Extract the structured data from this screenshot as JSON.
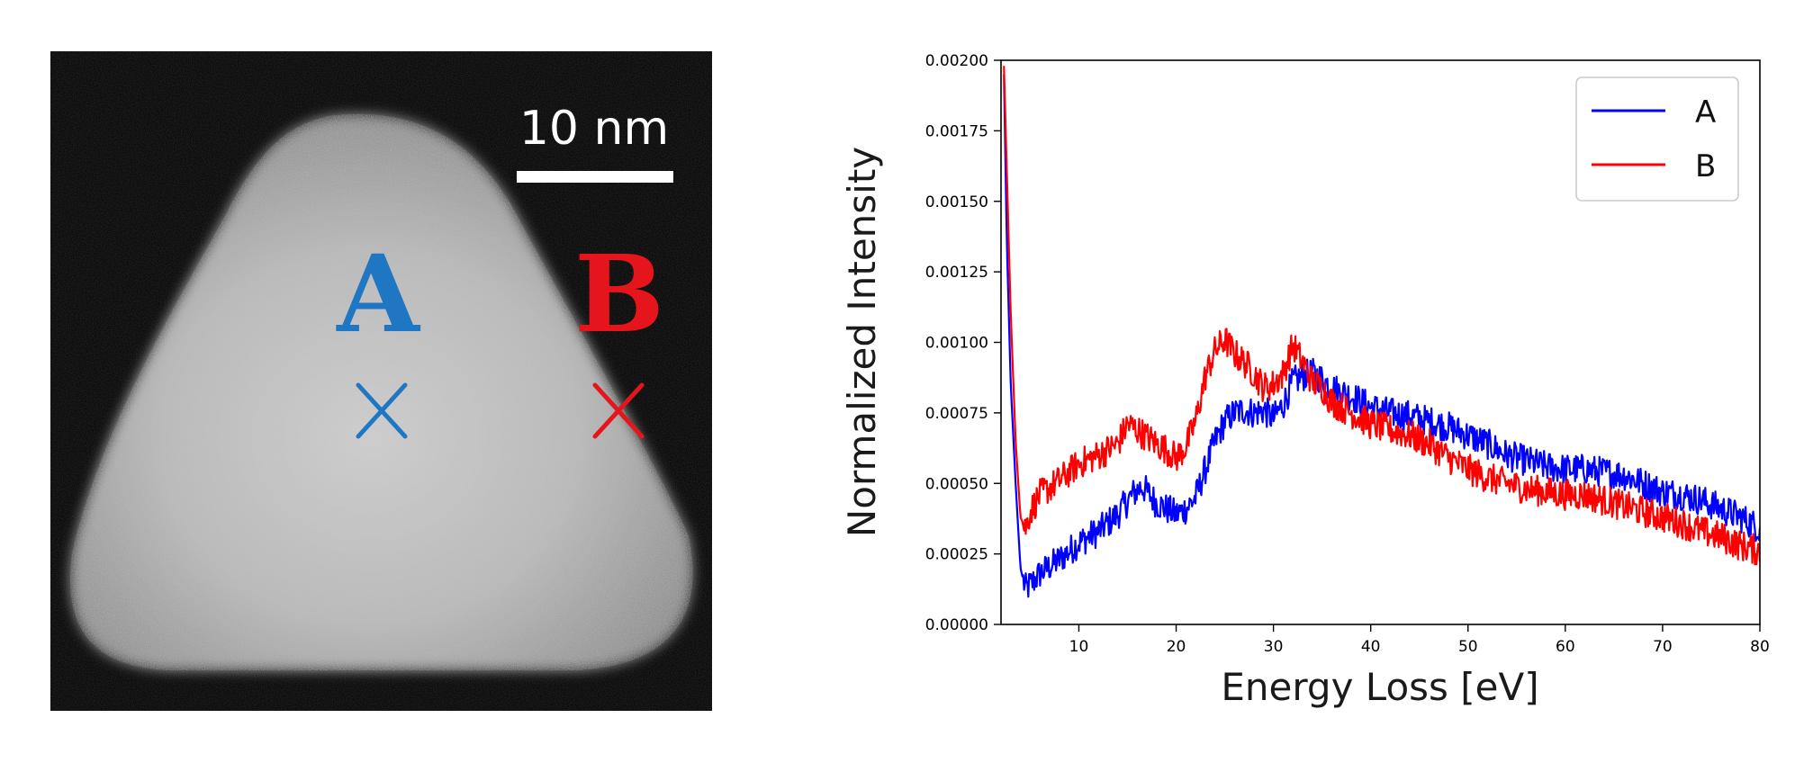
{
  "micrograph": {
    "scale_bar_label": "10 nm",
    "markers": [
      {
        "letter": "A",
        "color": "#1f77c4"
      },
      {
        "letter": "B",
        "color": "#e6141b"
      }
    ],
    "background": "#080808"
  },
  "chart_data": {
    "type": "line",
    "title": "",
    "xlabel": "Energy Loss [eV]",
    "ylabel": "Normalized Intensity",
    "xlim": [
      2,
      80
    ],
    "ylim": [
      0,
      0.002
    ],
    "xticks": [
      10,
      20,
      30,
      40,
      50,
      60,
      70,
      80
    ],
    "yticks": [
      "0.00000",
      "0.00025",
      "0.00050",
      "0.00075",
      "0.00100",
      "0.00125",
      "0.00150",
      "0.00175",
      "0.00200"
    ],
    "grid": false,
    "legend_position": "top-right",
    "series": [
      {
        "name": "A",
        "color": "#0000ff",
        "points": [
          [
            2.3,
            0.00195
          ],
          [
            2.6,
            0.00135
          ],
          [
            3.0,
            0.00085
          ],
          [
            3.5,
            0.0005
          ],
          [
            4.0,
            0.0002
          ],
          [
            4.5,
            0.000125
          ],
          [
            5,
            0.00014
          ],
          [
            6,
            0.00018
          ],
          [
            8,
            0.00023
          ],
          [
            10,
            0.00029
          ],
          [
            12,
            0.00033
          ],
          [
            14,
            0.00039
          ],
          [
            15.5,
            0.00046
          ],
          [
            16.5,
            0.00049
          ],
          [
            18,
            0.00043
          ],
          [
            19,
            0.00041
          ],
          [
            20,
            0.00039
          ],
          [
            21,
            0.00041
          ],
          [
            22,
            0.00045
          ],
          [
            23,
            0.00055
          ],
          [
            24,
            0.00065
          ],
          [
            25,
            0.00072
          ],
          [
            26,
            0.00075
          ],
          [
            27,
            0.00076
          ],
          [
            28,
            0.00075
          ],
          [
            29,
            0.00076
          ],
          [
            30,
            0.00073
          ],
          [
            31,
            0.00078
          ],
          [
            32,
            0.00086
          ],
          [
            33,
            0.00088
          ],
          [
            34,
            0.00089
          ],
          [
            35,
            0.00087
          ],
          [
            36,
            0.00084
          ],
          [
            38,
            0.00081
          ],
          [
            40,
            0.00077
          ],
          [
            42,
            0.00075
          ],
          [
            44,
            0.00074
          ],
          [
            46,
            0.00072
          ],
          [
            48,
            0.0007
          ],
          [
            50,
            0.00067
          ],
          [
            52,
            0.00064
          ],
          [
            54,
            0.0006
          ],
          [
            56,
            0.00058
          ],
          [
            58,
            0.00056
          ],
          [
            60,
            0.00055
          ],
          [
            62,
            0.00055
          ],
          [
            64,
            0.00054
          ],
          [
            66,
            0.00053
          ],
          [
            68,
            0.0005
          ],
          [
            70,
            0.00047
          ],
          [
            72,
            0.00046
          ],
          [
            74,
            0.00044
          ],
          [
            76,
            0.00041
          ],
          [
            78,
            0.00038
          ],
          [
            80,
            0.00034
          ]
        ]
      },
      {
        "name": "B",
        "color": "#ff0000",
        "points": [
          [
            2.3,
            0.00198
          ],
          [
            2.6,
            0.0016
          ],
          [
            3.0,
            0.0011
          ],
          [
            3.5,
            0.00065
          ],
          [
            4.0,
            0.00038
          ],
          [
            4.5,
            0.00034
          ],
          [
            5,
            0.0004
          ],
          [
            6,
            0.00046
          ],
          [
            8,
            0.00051
          ],
          [
            10,
            0.00057
          ],
          [
            12,
            0.0006
          ],
          [
            14,
            0.00064
          ],
          [
            15,
            0.00071
          ],
          [
            16,
            0.00069
          ],
          [
            18,
            0.00064
          ],
          [
            19,
            0.00062
          ],
          [
            20,
            0.00059
          ],
          [
            21,
            0.00063
          ],
          [
            22,
            0.00072
          ],
          [
            23,
            0.00088
          ],
          [
            24,
            0.00097
          ],
          [
            25,
            0.00101
          ],
          [
            26,
            0.00096
          ],
          [
            27,
            0.00093
          ],
          [
            28,
            0.00089
          ],
          [
            29,
            0.00084
          ],
          [
            30,
            0.00085
          ],
          [
            31,
            0.00089
          ],
          [
            32,
            0.00099
          ],
          [
            33,
            0.00093
          ],
          [
            34,
            0.00086
          ],
          [
            35,
            0.00084
          ],
          [
            36,
            0.00079
          ],
          [
            38,
            0.00075
          ],
          [
            40,
            0.00071
          ],
          [
            42,
            0.00069
          ],
          [
            44,
            0.00067
          ],
          [
            46,
            0.00064
          ],
          [
            48,
            0.00059
          ],
          [
            50,
            0.00055
          ],
          [
            52,
            0.00052
          ],
          [
            54,
            0.0005
          ],
          [
            56,
            0.00048
          ],
          [
            58,
            0.00047
          ],
          [
            60,
            0.00046
          ],
          [
            62,
            0.00046
          ],
          [
            64,
            0.00044
          ],
          [
            66,
            0.00042
          ],
          [
            68,
            0.0004
          ],
          [
            70,
            0.00038
          ],
          [
            72,
            0.00036
          ],
          [
            74,
            0.00033
          ],
          [
            76,
            0.00031
          ],
          [
            78,
            0.00028
          ],
          [
            80,
            0.00026
          ]
        ]
      }
    ]
  }
}
